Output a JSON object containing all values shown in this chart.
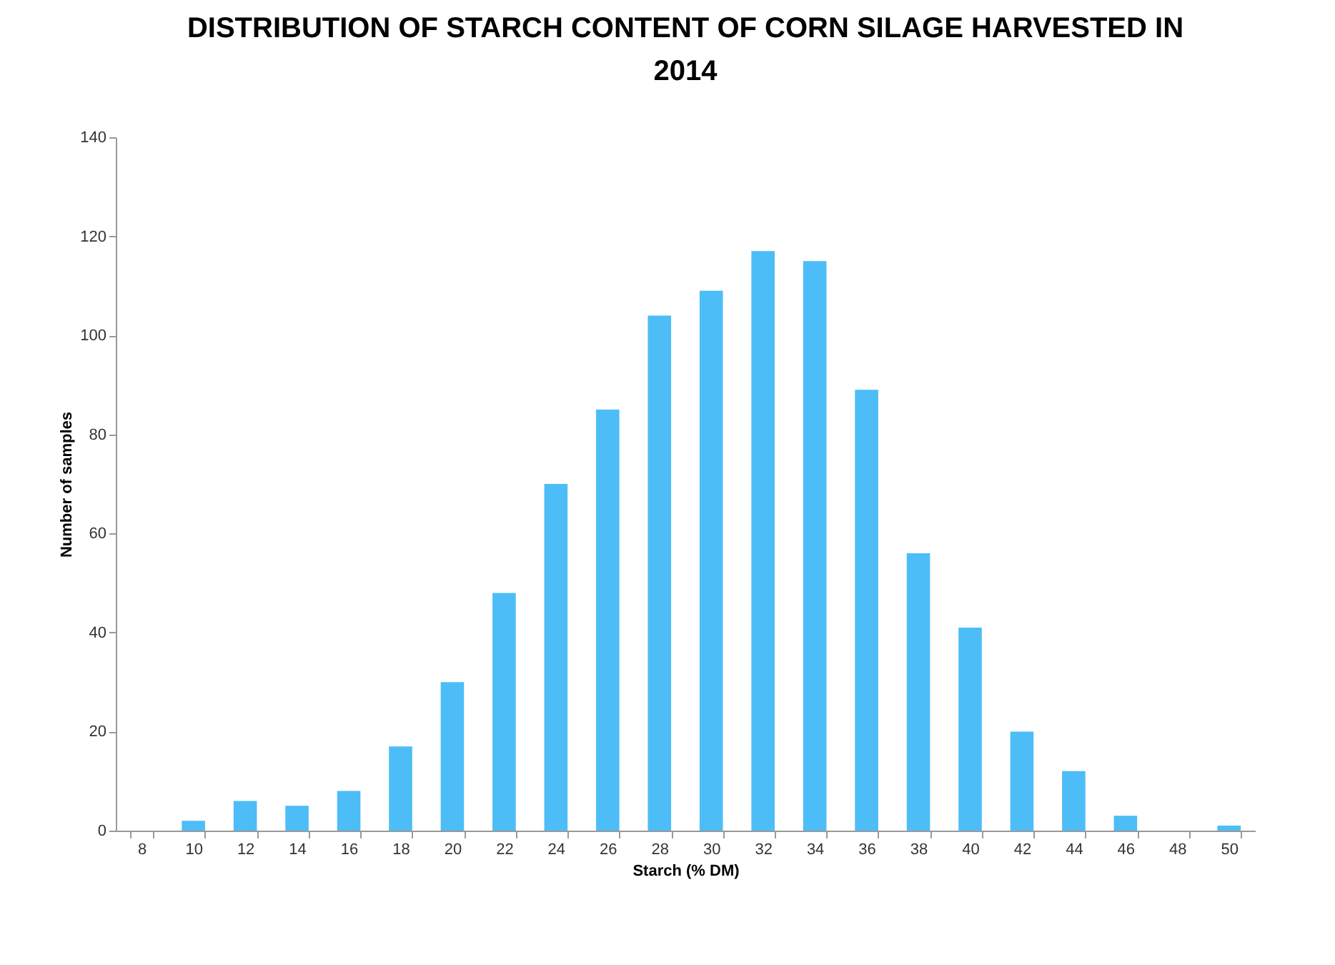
{
  "chart_data": {
    "type": "bar",
    "title": "DISTRIBUTION OF STARCH CONTENT OF CORN SILAGE HARVESTED IN 2014",
    "xlabel": "Starch (% DM)",
    "ylabel": "Number of samples",
    "categories": [
      "8",
      "10",
      "12",
      "14",
      "16",
      "18",
      "20",
      "22",
      "24",
      "26",
      "28",
      "30",
      "32",
      "34",
      "36",
      "38",
      "40",
      "42",
      "44",
      "46",
      "48",
      "50"
    ],
    "values": [
      0,
      2,
      6,
      5,
      8,
      17,
      30,
      48,
      70,
      85,
      104,
      109,
      117,
      115,
      89,
      56,
      41,
      20,
      12,
      3,
      0,
      1
    ],
    "color": "#4dbdf7",
    "ylim": [
      0,
      140
    ],
    "yticks": [
      0,
      20,
      40,
      60,
      80,
      100,
      120,
      140
    ],
    "grid": false,
    "legend": false
  }
}
